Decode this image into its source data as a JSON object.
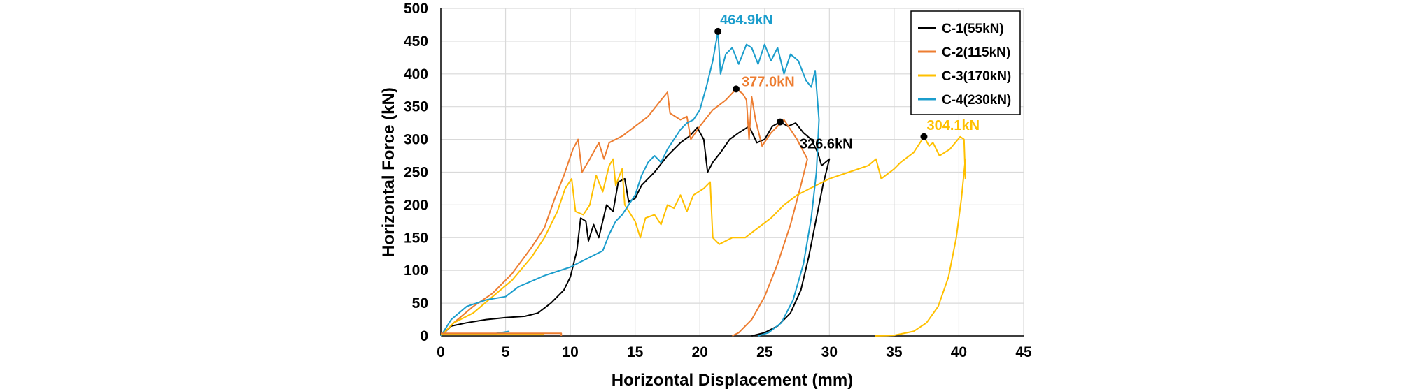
{
  "chart_data": {
    "type": "line",
    "title": "",
    "xlabel": "Horizontal Displacement (mm)",
    "ylabel": "Horizontal Force (kN)",
    "xlim": [
      0,
      45
    ],
    "ylim": [
      0,
      500
    ],
    "xticks": [
      "0",
      "5",
      "10",
      "15",
      "20",
      "25",
      "30",
      "35",
      "40",
      "45"
    ],
    "yticks": [
      "0",
      "50",
      "100",
      "150",
      "200",
      "250",
      "300",
      "350",
      "400",
      "450",
      "500"
    ],
    "grid": true,
    "legend_position": "top-right",
    "series": [
      {
        "name": "C-1(55kN)",
        "color": "#000000",
        "points": [
          [
            0,
            0
          ],
          [
            0.8,
            15
          ],
          [
            2,
            20
          ],
          [
            3.5,
            25
          ],
          [
            5,
            28
          ],
          [
            6.5,
            30
          ],
          [
            7.5,
            35
          ],
          [
            8.5,
            50
          ],
          [
            9.5,
            70
          ],
          [
            10,
            90
          ],
          [
            10.5,
            130
          ],
          [
            10.8,
            180
          ],
          [
            11.2,
            175
          ],
          [
            11.4,
            145
          ],
          [
            11.8,
            170
          ],
          [
            12.2,
            150
          ],
          [
            12.8,
            200
          ],
          [
            13.3,
            190
          ],
          [
            13.7,
            235
          ],
          [
            14.2,
            240
          ],
          [
            14.5,
            205
          ],
          [
            15,
            210
          ],
          [
            15.5,
            230
          ],
          [
            16.5,
            250
          ],
          [
            17.5,
            275
          ],
          [
            18.5,
            295
          ],
          [
            19.2,
            305
          ],
          [
            19.8,
            318
          ],
          [
            20.3,
            300
          ],
          [
            20.6,
            250
          ],
          [
            21,
            265
          ],
          [
            21.6,
            280
          ],
          [
            22.3,
            300
          ],
          [
            23,
            310
          ],
          [
            23.8,
            320
          ],
          [
            24.4,
            295
          ],
          [
            25,
            300
          ],
          [
            25.6,
            320
          ],
          [
            26.2,
            326.6
          ],
          [
            26.8,
            320
          ],
          [
            27.4,
            325
          ],
          [
            28,
            310
          ],
          [
            28.6,
            300
          ],
          [
            29.1,
            280
          ],
          [
            29.4,
            260
          ],
          [
            29.7,
            265
          ],
          [
            30,
            270
          ],
          [
            29.5,
            230
          ],
          [
            29,
            180
          ],
          [
            28.4,
            120
          ],
          [
            27.8,
            70
          ],
          [
            27,
            35
          ],
          [
            26,
            15
          ],
          [
            25,
            5
          ],
          [
            24,
            0
          ]
        ]
      },
      {
        "name": "C-2(115kN)",
        "color": "#ED7D31",
        "points": [
          [
            0,
            0
          ],
          [
            1,
            20
          ],
          [
            2.5,
            45
          ],
          [
            4,
            65
          ],
          [
            5.5,
            95
          ],
          [
            7,
            135
          ],
          [
            8,
            165
          ],
          [
            8.8,
            210
          ],
          [
            9.5,
            245
          ],
          [
            10.2,
            285
          ],
          [
            10.6,
            300
          ],
          [
            10.9,
            250
          ],
          [
            11.5,
            270
          ],
          [
            12.2,
            295
          ],
          [
            12.6,
            270
          ],
          [
            13,
            295
          ],
          [
            14,
            305
          ],
          [
            15,
            320
          ],
          [
            16,
            335
          ],
          [
            17,
            360
          ],
          [
            17.5,
            372
          ],
          [
            17.7,
            340
          ],
          [
            18.5,
            330
          ],
          [
            19,
            335
          ],
          [
            19.3,
            300
          ],
          [
            20,
            320
          ],
          [
            21,
            345
          ],
          [
            22,
            360
          ],
          [
            22.8,
            377
          ],
          [
            23.3,
            370
          ],
          [
            23.6,
            360
          ],
          [
            23.8,
            300
          ],
          [
            24,
            365
          ],
          [
            24.3,
            330
          ],
          [
            24.8,
            290
          ],
          [
            25.5,
            310
          ],
          [
            26.5,
            330
          ],
          [
            27,
            315
          ],
          [
            27.5,
            300
          ],
          [
            27.9,
            285
          ],
          [
            28.3,
            270
          ],
          [
            27.8,
            230
          ],
          [
            27,
            170
          ],
          [
            26,
            110
          ],
          [
            25,
            60
          ],
          [
            24,
            25
          ],
          [
            23,
            5
          ],
          [
            22.5,
            0
          ]
        ]
      },
      {
        "name": "C-3(170kN)",
        "color": "#FFC000",
        "points": [
          [
            0,
            0
          ],
          [
            1,
            20
          ],
          [
            2.5,
            35
          ],
          [
            4,
            60
          ],
          [
            5.5,
            85
          ],
          [
            7,
            120
          ],
          [
            8,
            150
          ],
          [
            9,
            190
          ],
          [
            9.6,
            225
          ],
          [
            10.1,
            240
          ],
          [
            10.4,
            190
          ],
          [
            11,
            185
          ],
          [
            11.5,
            200
          ],
          [
            12,
            245
          ],
          [
            12.5,
            220
          ],
          [
            13,
            260
          ],
          [
            13.3,
            270
          ],
          [
            13.5,
            230
          ],
          [
            14,
            255
          ],
          [
            14.2,
            200
          ],
          [
            15,
            175
          ],
          [
            15.4,
            150
          ],
          [
            15.8,
            180
          ],
          [
            16.5,
            185
          ],
          [
            17,
            170
          ],
          [
            17.5,
            200
          ],
          [
            18,
            195
          ],
          [
            18.5,
            215
          ],
          [
            19,
            190
          ],
          [
            19.5,
            215
          ],
          [
            20.3,
            225
          ],
          [
            20.8,
            235
          ],
          [
            21,
            150
          ],
          [
            21.5,
            140
          ],
          [
            22.5,
            150
          ],
          [
            23.5,
            150
          ],
          [
            24.5,
            165
          ],
          [
            25.5,
            180
          ],
          [
            26.5,
            200
          ],
          [
            27.5,
            215
          ],
          [
            28.5,
            225
          ],
          [
            30,
            240
          ],
          [
            31.5,
            250
          ],
          [
            33,
            260
          ],
          [
            33.6,
            270
          ],
          [
            34,
            240
          ],
          [
            35,
            255
          ],
          [
            35.5,
            265
          ],
          [
            36.5,
            280
          ],
          [
            37.3,
            304.1
          ],
          [
            37.7,
            290
          ],
          [
            38,
            295
          ],
          [
            38.5,
            275
          ],
          [
            39.3,
            285
          ],
          [
            40.1,
            304
          ],
          [
            40.4,
            300
          ],
          [
            40.5,
            240
          ],
          [
            40.5,
            270
          ],
          [
            40.2,
            210
          ],
          [
            39.8,
            150
          ],
          [
            39.2,
            90
          ],
          [
            38.4,
            45
          ],
          [
            37.5,
            20
          ],
          [
            36.5,
            7
          ],
          [
            35,
            1
          ],
          [
            33.5,
            0
          ]
        ]
      },
      {
        "name": "C-4(230kN)",
        "color": "#1B9DCC",
        "points": [
          [
            0,
            0
          ],
          [
            0.8,
            25
          ],
          [
            2,
            45
          ],
          [
            3.5,
            55
          ],
          [
            5,
            60
          ],
          [
            6,
            75
          ],
          [
            8,
            92
          ],
          [
            10,
            105
          ],
          [
            11.5,
            120
          ],
          [
            12.5,
            130
          ],
          [
            13,
            155
          ],
          [
            13.5,
            175
          ],
          [
            14,
            185
          ],
          [
            14.5,
            200
          ],
          [
            15,
            215
          ],
          [
            15.5,
            245
          ],
          [
            16,
            265
          ],
          [
            16.5,
            275
          ],
          [
            17,
            265
          ],
          [
            17.5,
            285
          ],
          [
            18,
            300
          ],
          [
            18.5,
            315
          ],
          [
            19,
            325
          ],
          [
            19.5,
            330
          ],
          [
            20,
            345
          ],
          [
            20.5,
            380
          ],
          [
            21,
            420
          ],
          [
            21.4,
            464.9
          ],
          [
            21.6,
            400
          ],
          [
            22,
            430
          ],
          [
            22.5,
            440
          ],
          [
            23,
            415
          ],
          [
            23.6,
            445
          ],
          [
            24,
            440
          ],
          [
            24.5,
            415
          ],
          [
            25,
            445
          ],
          [
            25.5,
            420
          ],
          [
            26,
            440
          ],
          [
            26.5,
            400
          ],
          [
            27,
            430
          ],
          [
            27.6,
            420
          ],
          [
            28.2,
            390
          ],
          [
            28.6,
            380
          ],
          [
            28.9,
            405
          ],
          [
            29.2,
            330
          ],
          [
            29,
            250
          ],
          [
            28.6,
            180
          ],
          [
            28,
            110
          ],
          [
            27.2,
            55
          ],
          [
            26.3,
            20
          ],
          [
            25.3,
            5
          ],
          [
            24.5,
            0
          ]
        ]
      },
      {
        "name": "",
        "color": "#1B9DCC",
        "points": [
          [
            0,
            3
          ],
          [
            2,
            3
          ],
          [
            4,
            3
          ],
          [
            5.3,
            7
          ]
        ]
      },
      {
        "name": "",
        "color": "#FFC000",
        "points": [
          [
            0,
            2
          ],
          [
            3,
            2
          ],
          [
            6,
            2
          ],
          [
            8,
            2
          ]
        ]
      },
      {
        "name": "",
        "color": "#ED7D31",
        "points": [
          [
            0,
            4
          ],
          [
            5,
            4
          ],
          [
            9.3,
            4
          ],
          [
            9.3,
            0
          ]
        ]
      }
    ],
    "annotations": [
      {
        "text": "464.9kN",
        "x": 21.4,
        "y": 464.9,
        "color": "#1B9DCC"
      },
      {
        "text": "377.0kN",
        "x": 22.8,
        "y": 377.0,
        "color": "#ED7D31"
      },
      {
        "text": "326.6kN",
        "x": 26.2,
        "y": 326.6,
        "color": "#000000"
      },
      {
        "text": "304.1kN",
        "x": 37.3,
        "y": 304.1,
        "color": "#FFC000"
      }
    ]
  }
}
